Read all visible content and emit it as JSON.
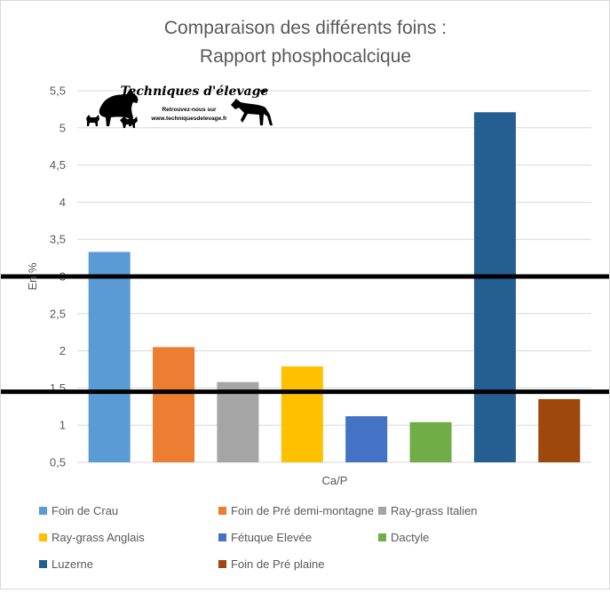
{
  "chart_data": {
    "type": "bar",
    "title": [
      "Comparaison des différents foins :",
      "Rapport phosphocalcique"
    ],
    "xlabel": "Ca/P",
    "ylabel": "En %",
    "ylim": [
      0.5,
      5.5
    ],
    "yticks": [
      "0,5",
      "1",
      "1,5",
      "2",
      "2,5",
      "3",
      "3,5",
      "4",
      "4,5",
      "5",
      "5,5"
    ],
    "grid": true,
    "legend_position": "bottom",
    "series": [
      {
        "name": "Foin de Crau",
        "value": 3.33,
        "color": "#5b9bd5"
      },
      {
        "name": "Foin de Pré demi-montagne",
        "value": 2.05,
        "color": "#ed7d31"
      },
      {
        "name": "Ray-grass Italien",
        "value": 1.58,
        "color": "#a5a5a5"
      },
      {
        "name": "Ray-grass Anglais",
        "value": 1.79,
        "color": "#ffc000"
      },
      {
        "name": "Fétuque Elevée",
        "value": 1.12,
        "color": "#4472c4"
      },
      {
        "name": "Dactyle",
        "value": 1.04,
        "color": "#70ad47"
      },
      {
        "name": "Luzerne",
        "value": 5.21,
        "color": "#255e91"
      },
      {
        "name": "Foin de Pré plaine",
        "value": 1.35,
        "color": "#9e480e"
      }
    ],
    "reference_lines": [
      3,
      1.45
    ]
  },
  "logo": {
    "name": "Techniques d'élevage",
    "line1": "Retrouvez-nous sur",
    "line2": "www.techniquesdelevage.fr"
  }
}
